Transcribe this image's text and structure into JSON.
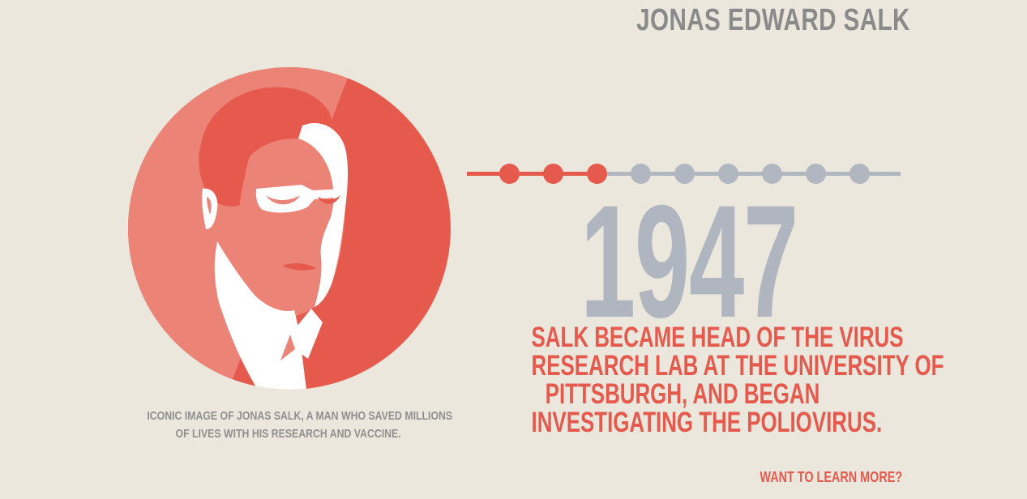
{
  "header": {
    "title": "JONAS EDWARD SALK"
  },
  "portrait": {
    "icon": "jonas-salk-portrait-icon",
    "caption_lines": [
      "ICONIC IMAGE OF JONAS SALK, A MAN WHO SAVED MILLIONS",
      "OF LIVES WITH HIS RESEARCH AND VACCINE."
    ]
  },
  "timeline": {
    "total_points": 9,
    "active_index": 2
  },
  "event": {
    "year": "1947",
    "description_lines": [
      "SALK BECAME HEAD OF THE VIRUS",
      "RESEARCH LAB AT THE UNIVERSITY OF",
      "PITTSBURGH, AND BEGAN",
      "INVESTIGATING THE POLIOVIRUS."
    ]
  },
  "footer": {
    "learn_more": "WANT TO LEARN MORE?"
  },
  "colors": {
    "accent": "#e65a4e",
    "accent_light": "#ec8377",
    "inactive": "#b1b7c0",
    "background": "#ebe7dd",
    "title_gray": "#8a8a8a"
  }
}
